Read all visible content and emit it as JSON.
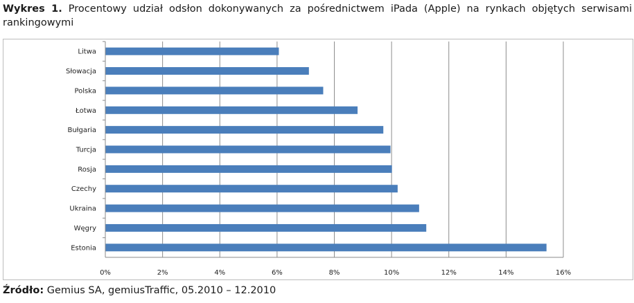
{
  "caption": {
    "label": "Wykres 1.",
    "text": "Procentowy udział odsłon dokonywanych za pośrednictwem iPada (Apple) na rynkach objętych serwisami rankingowymi"
  },
  "source": {
    "label": "Źródło:",
    "text": "Gemius SA, gemiusTraffic, 05.2010 – 12.2010"
  },
  "chart_data": {
    "type": "bar",
    "orientation": "horizontal",
    "categories": [
      "Litwa",
      "Słowacja",
      "Polska",
      "Łotwa",
      "Bułgaria",
      "Turcja",
      "Rosja",
      "Czechy",
      "Ukraina",
      "Węgry",
      "Estonia"
    ],
    "values": [
      6.05,
      7.1,
      7.6,
      8.8,
      9.7,
      9.95,
      10.0,
      10.2,
      10.95,
      11.2,
      15.4
    ],
    "unit": "%",
    "xlim": [
      0,
      16
    ],
    "xticks": [
      0,
      2,
      4,
      6,
      8,
      10,
      12,
      14,
      16
    ],
    "xtick_labels": [
      "0%",
      "2%",
      "4%",
      "6%",
      "8%",
      "10%",
      "12%",
      "14%",
      "16%"
    ],
    "grid": "vertical",
    "legend": "none",
    "bar_color": "#4a7ebb"
  }
}
